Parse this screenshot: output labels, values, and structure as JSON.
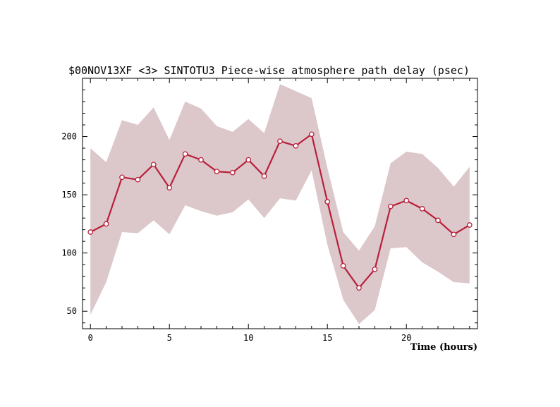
{
  "chart_data": {
    "type": "line",
    "title": "$00NOV13XF <3>  SINTOTU3  Piece-wise atmosphere path delay (psec)",
    "xlabel": "Time (hours)",
    "ylabel": "",
    "xlim": [
      -0.5,
      24.5
    ],
    "ylim": [
      35,
      250
    ],
    "xticks": [
      0,
      5,
      10,
      15,
      20
    ],
    "yticks": [
      50,
      100,
      150,
      200
    ],
    "grid": false,
    "x": [
      0,
      1,
      2,
      3,
      4,
      5,
      6,
      7,
      8,
      9,
      10,
      11,
      12,
      13,
      14,
      15,
      16,
      17,
      18,
      19,
      20,
      21,
      22,
      23,
      24
    ],
    "series": [
      {
        "values": [
          118,
          125,
          165,
          163,
          176,
          156,
          185,
          180,
          170,
          169,
          180,
          166,
          196,
          192,
          202,
          144,
          89,
          70,
          86,
          140,
          145,
          138,
          128,
          116,
          124
        ],
        "color": "#b8203a"
      }
    ],
    "band": {
      "upper": [
        190,
        178,
        214,
        210,
        225,
        197,
        230,
        224,
        209,
        204,
        215,
        203,
        245,
        239,
        233,
        173,
        118,
        102,
        123,
        177,
        187,
        185,
        173,
        157,
        174
      ],
      "lower": [
        47,
        75,
        118,
        117,
        128,
        116,
        141,
        136,
        132,
        135,
        146,
        130,
        147,
        145,
        171,
        107,
        60,
        39,
        51,
        104,
        105,
        92,
        84,
        75,
        74
      ],
      "color": "#dcc7ca"
    }
  }
}
